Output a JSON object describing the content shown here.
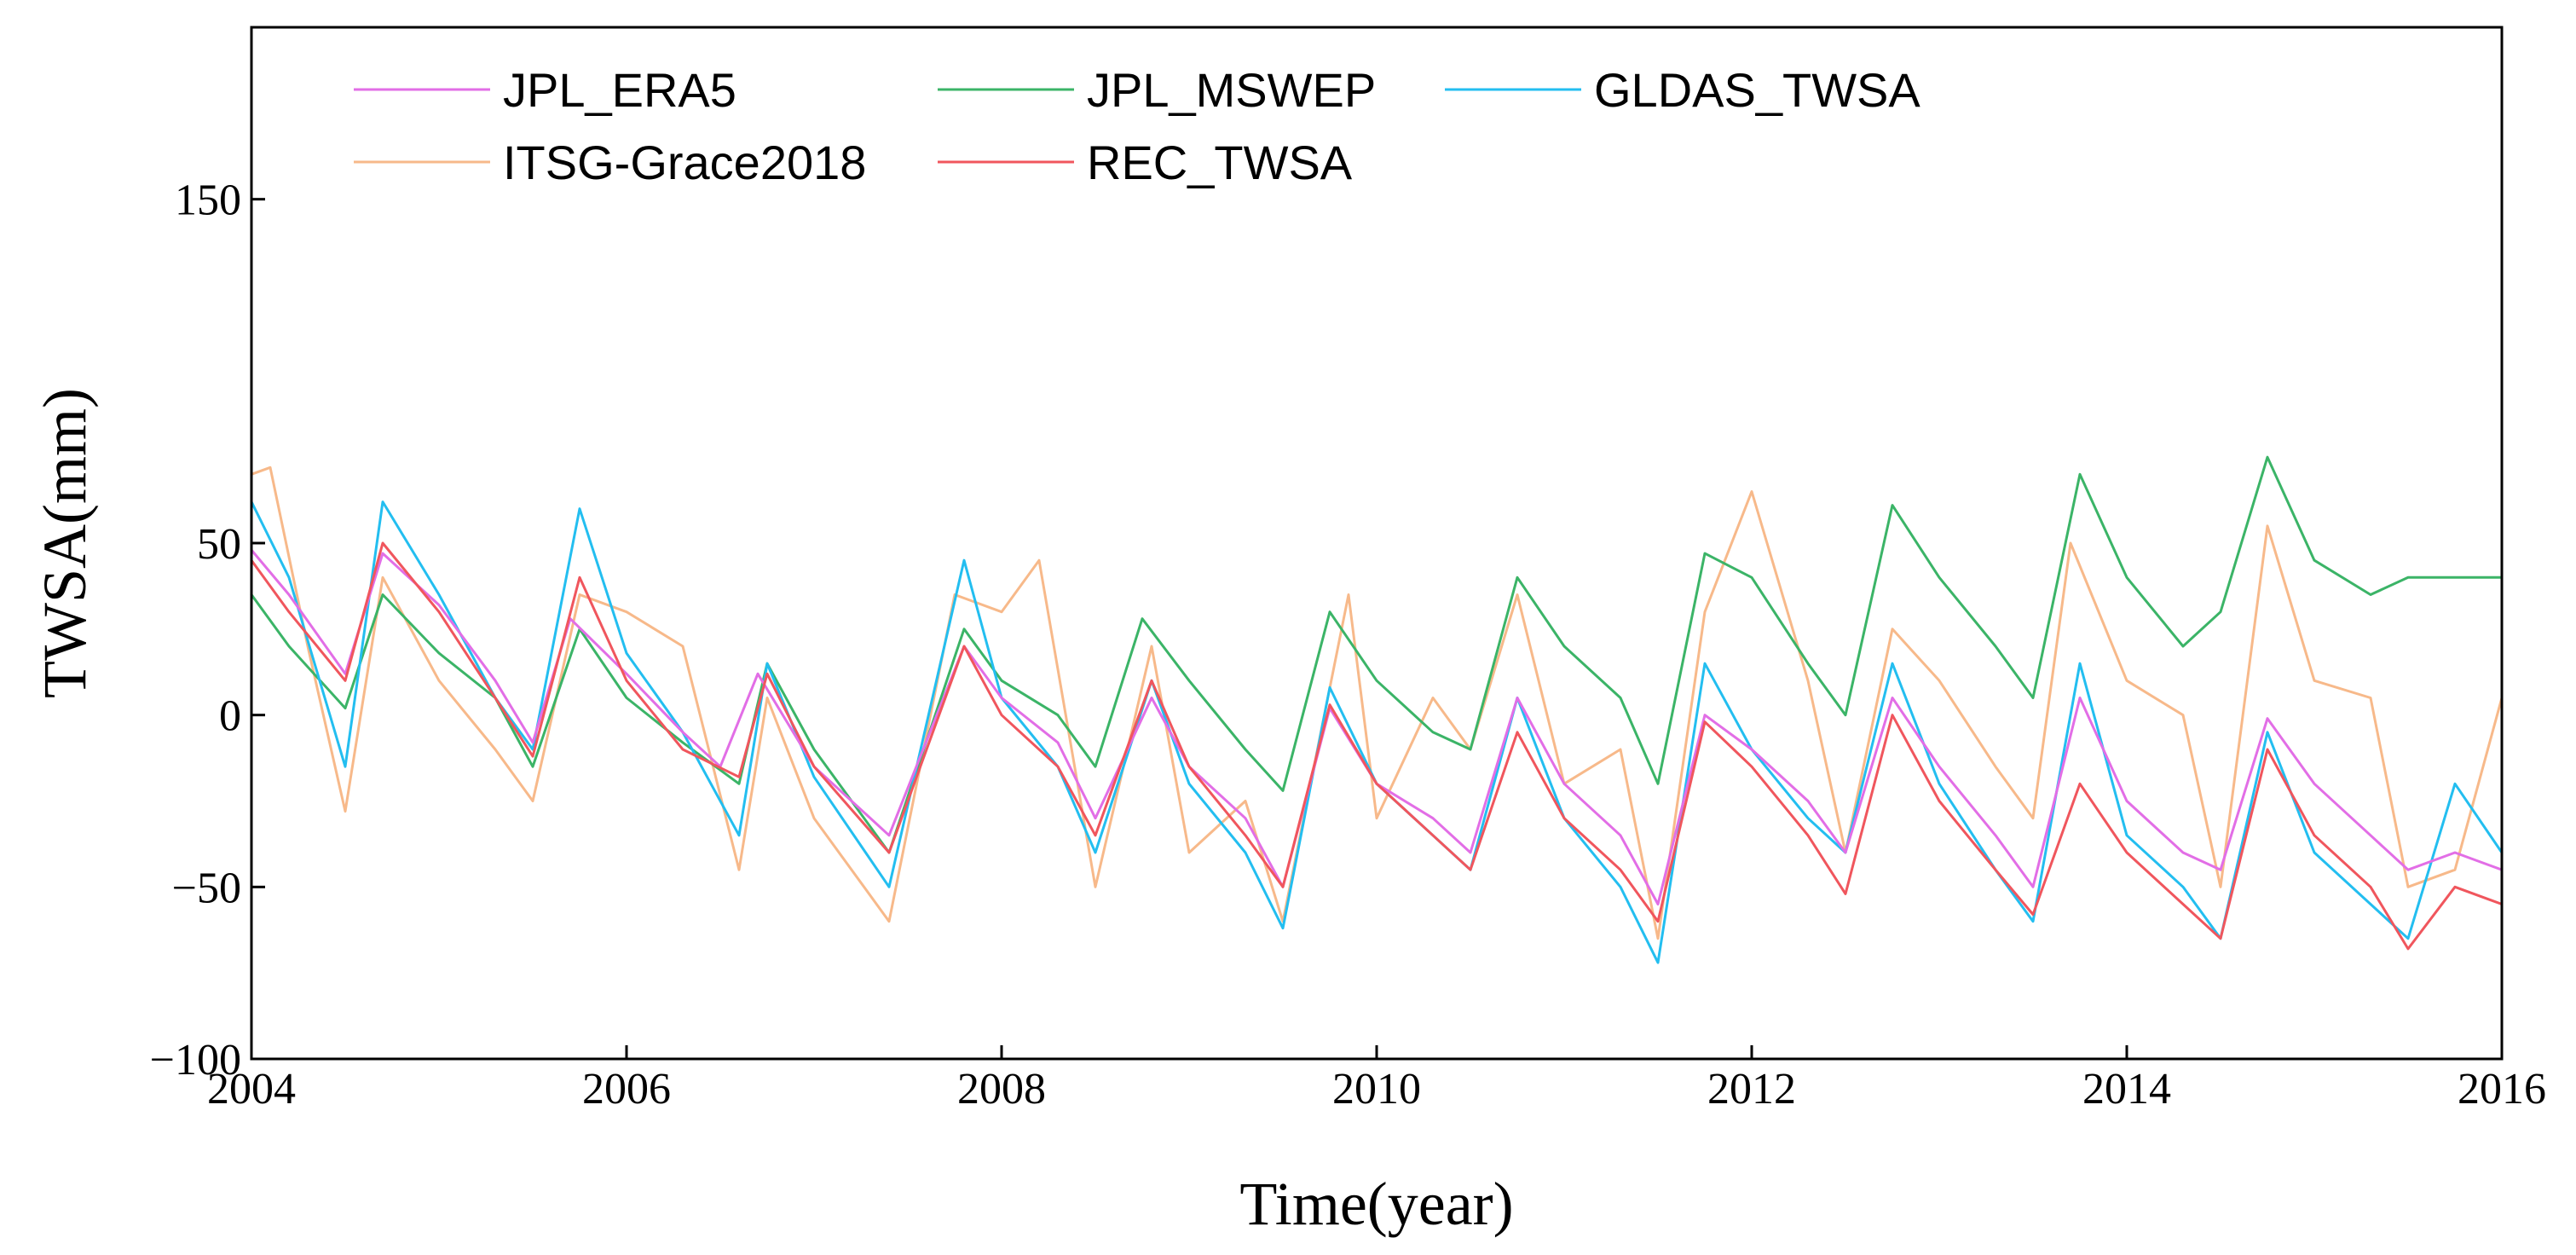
{
  "chart_data": {
    "type": "line",
    "title": "",
    "xlabel": "Time(year)",
    "ylabel": "TWSA(mm)",
    "xlim": [
      2004,
      2016
    ],
    "ylim": [
      -100,
      200
    ],
    "xticks": [
      2004,
      2006,
      2008,
      2010,
      2012,
      2014,
      2016
    ],
    "yticks": [
      -100,
      -50,
      0,
      50,
      150
    ],
    "ytick_labels": [
      "−100",
      "−50",
      "0",
      "50",
      "150"
    ],
    "grid": false,
    "legend_position": "top-left",
    "series": [
      {
        "name": "JPL_ERA5",
        "color": "#e26ee6",
        "x": [
          2004.0,
          2004.2,
          2004.5,
          2004.7,
          2005.0,
          2005.3,
          2005.5,
          2005.7,
          2006.0,
          2006.3,
          2006.5,
          2006.7,
          2007.0,
          2007.4,
          2007.8,
          2008.0,
          2008.3,
          2008.5,
          2008.8,
          2009.0,
          2009.3,
          2009.5,
          2009.75,
          2010.0,
          2010.3,
          2010.5,
          2010.75,
          2011.0,
          2011.3,
          2011.5,
          2011.75,
          2012.0,
          2012.3,
          2012.5,
          2012.75,
          2013.0,
          2013.3,
          2013.5,
          2013.75,
          2014.0,
          2014.3,
          2014.5,
          2014.75,
          2015.0,
          2015.3,
          2015.5,
          2015.75,
          2016.0
        ],
        "values": [
          48,
          35,
          12,
          47,
          32,
          10,
          -8,
          28,
          12,
          -5,
          -15,
          12,
          -15,
          -35,
          20,
          5,
          -8,
          -30,
          5,
          -15,
          -30,
          -50,
          2,
          -20,
          -30,
          -40,
          5,
          -20,
          -35,
          -55,
          0,
          -10,
          -25,
          -40,
          5,
          -15,
          -35,
          -50,
          5,
          -25,
          -40,
          -45,
          -1,
          -20,
          -35,
          -45,
          -40,
          -45
        ]
      },
      {
        "name": "JPL_MSWEP",
        "color": "#3bb467",
        "x": [
          2004.0,
          2004.2,
          2004.5,
          2004.7,
          2005.0,
          2005.3,
          2005.5,
          2005.75,
          2006.0,
          2006.3,
          2006.6,
          2006.75,
          2007.0,
          2007.4,
          2007.8,
          2008.0,
          2008.3,
          2008.5,
          2008.75,
          2009.0,
          2009.3,
          2009.5,
          2009.75,
          2010.0,
          2010.3,
          2010.5,
          2010.75,
          2011.0,
          2011.3,
          2011.5,
          2011.75,
          2012.0,
          2012.3,
          2012.5,
          2012.75,
          2013.0,
          2013.3,
          2013.5,
          2013.75,
          2014.0,
          2014.3,
          2014.5,
          2014.75,
          2015.0,
          2015.3,
          2015.5,
          2015.75,
          2016.0
        ],
        "values": [
          35,
          20,
          2,
          35,
          18,
          5,
          -15,
          25,
          5,
          -8,
          -20,
          15,
          -10,
          -40,
          25,
          10,
          0,
          -15,
          28,
          10,
          -10,
          -22,
          30,
          10,
          -5,
          -10,
          40,
          20,
          5,
          -20,
          47,
          40,
          15,
          0,
          61,
          40,
          20,
          5,
          70,
          40,
          20,
          30,
          75,
          45,
          35,
          40,
          40,
          40
        ]
      },
      {
        "name": "GLDAS_TWSA",
        "color": "#23bef0",
        "x": [
          2004.0,
          2004.2,
          2004.5,
          2004.7,
          2005.0,
          2005.3,
          2005.5,
          2005.75,
          2006.0,
          2006.3,
          2006.6,
          2006.75,
          2007.0,
          2007.4,
          2007.8,
          2008.0,
          2008.3,
          2008.5,
          2008.8,
          2009.0,
          2009.3,
          2009.5,
          2009.75,
          2010.0,
          2010.3,
          2010.5,
          2010.75,
          2011.0,
          2011.3,
          2011.5,
          2011.75,
          2012.0,
          2012.3,
          2012.5,
          2012.75,
          2013.0,
          2013.3,
          2013.5,
          2013.75,
          2014.0,
          2014.3,
          2014.5,
          2014.75,
          2015.0,
          2015.3,
          2015.5,
          2015.75,
          2016.0
        ],
        "values": [
          62,
          40,
          -15,
          62,
          35,
          5,
          -10,
          60,
          18,
          -5,
          -35,
          15,
          -18,
          -50,
          45,
          5,
          -15,
          -40,
          10,
          -20,
          -40,
          -62,
          8,
          -20,
          -35,
          -45,
          5,
          -30,
          -50,
          -72,
          15,
          -10,
          -30,
          -40,
          15,
          -20,
          -45,
          -60,
          15,
          -35,
          -50,
          -65,
          -5,
          -40,
          -55,
          -65,
          -20,
          -40
        ]
      },
      {
        "name": "ITSG-Grace2018",
        "color": "#f7b98a",
        "x": [
          2004.0,
          2004.1,
          2004.3,
          2004.5,
          2004.7,
          2005.0,
          2005.3,
          2005.5,
          2005.75,
          2006.0,
          2006.3,
          2006.6,
          2006.75,
          2007.0,
          2007.4,
          2007.75,
          2008.0,
          2008.2,
          2008.5,
          2008.8,
          2009.0,
          2009.3,
          2009.5,
          2009.85,
          2010.0,
          2010.3,
          2010.5,
          2010.75,
          2011.0,
          2011.3,
          2011.5,
          2011.75,
          2012.0,
          2012.3,
          2012.5,
          2012.75,
          2013.0,
          2013.3,
          2013.5,
          2013.7,
          2014.0,
          2014.3,
          2014.5,
          2014.75,
          2015.0,
          2015.3,
          2015.5,
          2015.75,
          2016.0
        ],
        "values": [
          70,
          72,
          20,
          -28,
          40,
          10,
          -10,
          -25,
          35,
          30,
          20,
          -45,
          5,
          -30,
          -60,
          35,
          30,
          45,
          -50,
          20,
          -40,
          -25,
          -60,
          35,
          -30,
          5,
          -10,
          35,
          -20,
          -10,
          -65,
          30,
          65,
          10,
          -40,
          25,
          10,
          -15,
          -30,
          50,
          10,
          0,
          -50,
          55,
          10,
          5,
          -50,
          -45,
          5
        ]
      },
      {
        "name": "REC_TWSA",
        "color": "#f0565d",
        "x": [
          2004.0,
          2004.2,
          2004.5,
          2004.7,
          2005.0,
          2005.3,
          2005.5,
          2005.75,
          2006.0,
          2006.3,
          2006.6,
          2006.75,
          2007.0,
          2007.4,
          2007.8,
          2008.0,
          2008.3,
          2008.5,
          2008.8,
          2009.0,
          2009.3,
          2009.5,
          2009.75,
          2010.0,
          2010.3,
          2010.5,
          2010.75,
          2011.0,
          2011.3,
          2011.5,
          2011.75,
          2012.0,
          2012.3,
          2012.5,
          2012.75,
          2013.0,
          2013.3,
          2013.5,
          2013.75,
          2014.0,
          2014.3,
          2014.5,
          2014.75,
          2015.0,
          2015.3,
          2015.5,
          2015.75,
          2016.0
        ],
        "values": [
          45,
          30,
          10,
          50,
          30,
          5,
          -12,
          40,
          10,
          -10,
          -18,
          12,
          -15,
          -40,
          20,
          0,
          -15,
          -35,
          10,
          -15,
          -35,
          -50,
          3,
          -20,
          -35,
          -45,
          -5,
          -30,
          -45,
          -60,
          -2,
          -15,
          -35,
          -52,
          0,
          -25,
          -45,
          -58,
          -20,
          -40,
          -55,
          -65,
          -10,
          -35,
          -50,
          -68,
          -50,
          -55
        ]
      }
    ]
  }
}
